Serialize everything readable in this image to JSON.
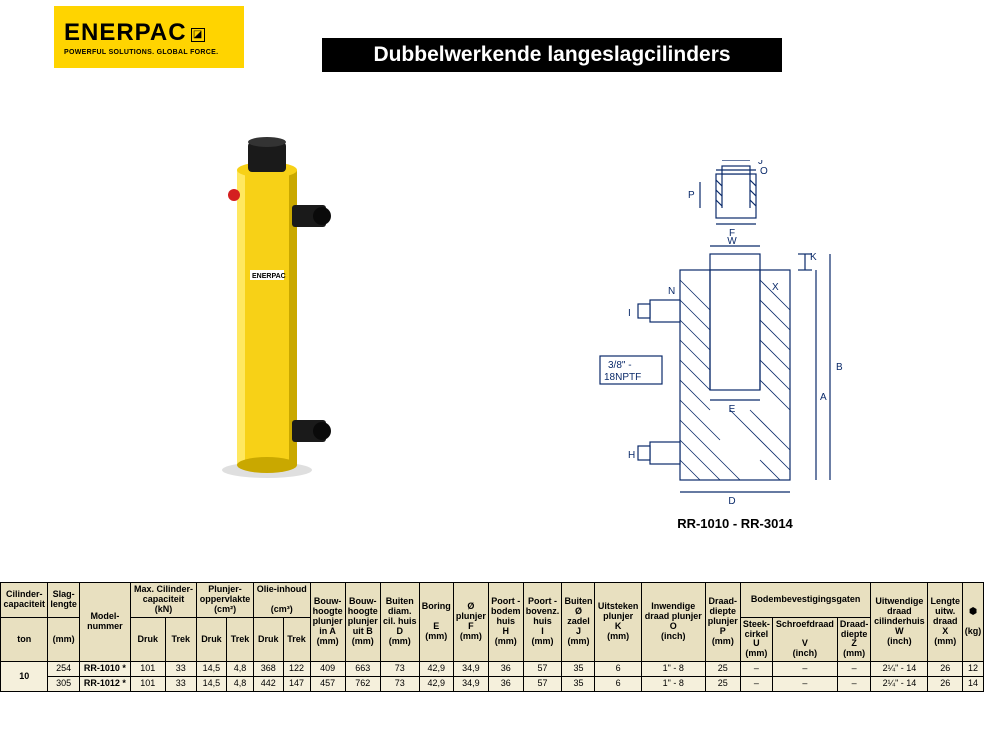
{
  "logo": {
    "brand": "ENERPAC",
    "tagline": "POWERFUL SOLUTIONS. GLOBAL FORCE."
  },
  "title": "Dubbelwerkende langeslagcilinders",
  "product_color": {
    "body": "#f7d117",
    "cap": "#1a1a1a",
    "port": "#1a1a1a",
    "button": "#d42020"
  },
  "diagram": {
    "caption": "RR-1010 - RR-3014",
    "port_label": "3/8\" - 18NPTF",
    "labels": [
      "J",
      "O",
      "P",
      "F",
      "W",
      "K",
      "N",
      "X",
      "I",
      "B",
      "A",
      "E",
      "H",
      "D"
    ],
    "line_color": "#0a2a6a"
  },
  "table": {
    "header_bg": "#e8e0c0",
    "body_bg": "#f5f0dc",
    "headers_row1": [
      "Cilinder-\ncapaciteit",
      "Slag-\nlengte",
      "Model-\nnummer",
      "Max. Cilinder-\ncapaciteit\n(kN)",
      "Plunjer-\noppervlakte\n(cm²)",
      "Olie-inhoud\n\n(cm³)",
      "Bouw-\nhoogte\nplunjer\nin A\n(mm)",
      "Bouw-\nhoogte\nplunjer\nuit B\n(mm)",
      "Buiten\ndiam.\ncil. huis\nD\n(mm)",
      "Boring\n\nE\n(mm)",
      "Ø\nplunjer\nF\n(mm)",
      "Poort -\nbodem\nhuis\nH\n(mm)",
      "Poort -\nbovenz.\nhuis\nI\n(mm)",
      "Buiten\nØ\nzadel\nJ\n(mm)",
      "Uitsteken\nplunjer\nK\n(mm)",
      "Inwendige\ndraad plunjer\nO\n(inch)",
      "Draad-\ndiepte\nplunjer\nP\n(mm)",
      "Bodembevestigingsgaten",
      "Uitwendige\ndraad\ncilinderhuis\nW\n(inch)",
      "Lengte\nuitw.\ndraad\nX\n(mm)",
      "⬣\n\n(kg)"
    ],
    "sub_headers_cap": [
      "Druk",
      "Trek"
    ],
    "sub_headers_plunjer": [
      "Druk",
      "Trek"
    ],
    "sub_headers_olie": [
      "Druk",
      "Trek"
    ],
    "sub_headers_bodem": [
      "Steek-\ncirkel\nU\n(mm)",
      "Schroefdraad\n\nV\n(inch)",
      "Draad-\ndiepte\nZ\n(mm)"
    ],
    "unit_row": [
      "ton",
      "(mm)"
    ],
    "rows": [
      {
        "cap": "",
        "slag": "254",
        "model": "RR-1010 *",
        "druk_kn": "101",
        "trek_kn": "33",
        "druk_cm": "14,5",
        "trek_cm": "4,8",
        "olie_d": "368",
        "olie_t": "122",
        "a": "409",
        "b": "663",
        "d": "73",
        "e": "42,9",
        "f": "34,9",
        "h": "36",
        "i": "57",
        "j": "35",
        "k": "6",
        "o": "1\" - 8",
        "p": "25",
        "u": "–",
        "v": "–",
        "z": "–",
        "w": "2¼\" - 14",
        "x": "26",
        "kg": "12"
      },
      {
        "cap": "",
        "slag": "305",
        "model": "RR-1012 *",
        "druk_kn": "101",
        "trek_kn": "33",
        "druk_cm": "14,5",
        "trek_cm": "4,8",
        "olie_d": "442",
        "olie_t": "147",
        "a": "457",
        "b": "762",
        "d": "73",
        "e": "42,9",
        "f": "34,9",
        "h": "36",
        "i": "57",
        "j": "35",
        "k": "6",
        "o": "1\" - 8",
        "p": "25",
        "u": "–",
        "v": "–",
        "z": "–",
        "w": "2¼\" - 14",
        "x": "26",
        "kg": "14"
      }
    ],
    "capacity_group": "10"
  }
}
